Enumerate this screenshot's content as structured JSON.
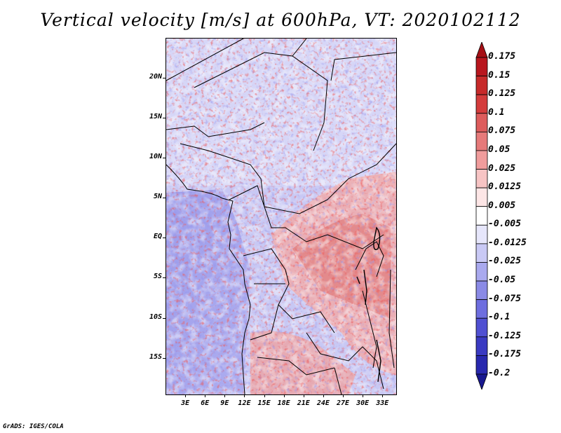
{
  "title": "Vertical velocity [m/s] at 600hPa, VT: 2020102112",
  "footer": "GrADS: IGES/COLA",
  "map": {
    "lat_labels": [
      "20N",
      "15N",
      "10N",
      "5N",
      "EQ",
      "5S",
      "10S",
      "15S"
    ],
    "lat_values": [
      20,
      15,
      10,
      5,
      0,
      -5,
      -10,
      -15
    ],
    "lon_labels": [
      "3E",
      "6E",
      "9E",
      "12E",
      "15E",
      "18E",
      "21E",
      "24E",
      "27E",
      "30E",
      "33E"
    ],
    "lon_values": [
      3,
      6,
      9,
      12,
      15,
      18,
      21,
      24,
      27,
      30,
      33
    ],
    "extent": {
      "lon_min": 0,
      "lon_max": 35,
      "lat_min": -19.5,
      "lat_max": 25
    }
  },
  "colorbar": {
    "labels": [
      "0.175",
      "0.15",
      "0.125",
      "0.1",
      "0.075",
      "0.05",
      "0.025",
      "0.0125",
      "0.005",
      "-0.005",
      "-0.0125",
      "-0.025",
      "-0.05",
      "-0.075",
      "-0.1",
      "-0.125",
      "-0.175",
      "-0.2"
    ],
    "colors": [
      "#a50f15",
      "#b8161e",
      "#c72a2a",
      "#d43c3c",
      "#dd5c5c",
      "#e67a7a",
      "#f09c9c",
      "#f7c4c4",
      "#fde6e6",
      "#ffffff",
      "#e6e6fb",
      "#c9c9f5",
      "#a9a9ee",
      "#8a8ae6",
      "#6e6edf",
      "#5050d2",
      "#3a3ac2",
      "#2828ae",
      "#18188f"
    ]
  }
}
